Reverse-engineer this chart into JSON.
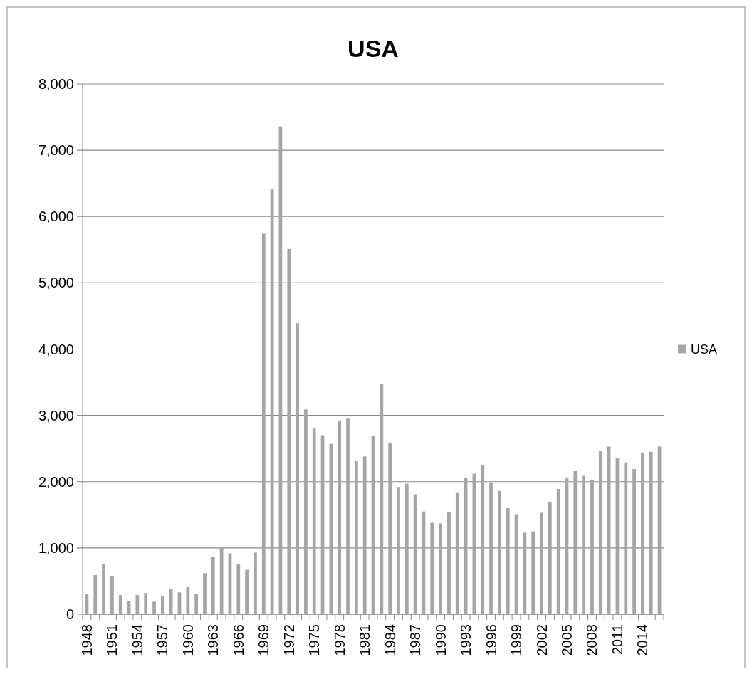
{
  "chart_data": {
    "type": "bar",
    "title": "USA",
    "categories": [
      "1948",
      null,
      null,
      "1951",
      null,
      null,
      "1954",
      null,
      null,
      "1957",
      null,
      null,
      "1960",
      null,
      null,
      "1963",
      null,
      null,
      "1966",
      null,
      null,
      "1969",
      null,
      null,
      "1972",
      null,
      null,
      "1975",
      null,
      null,
      "1978",
      null,
      null,
      "1981",
      null,
      null,
      "1984",
      null,
      null,
      "1987",
      null,
      null,
      "1990",
      null,
      null,
      "1993",
      null,
      null,
      "1996",
      null,
      null,
      "1999",
      null,
      null,
      "2002",
      null,
      null,
      "2005",
      null,
      null,
      "2008",
      null,
      null,
      "2011",
      null,
      null,
      "2014",
      null,
      null
    ],
    "series": [
      {
        "name": "USA",
        "color": "#a5a5a5",
        "values": [
          300,
          590,
          760,
          570,
          290,
          200,
          290,
          320,
          190,
          270,
          380,
          330,
          410,
          310,
          620,
          870,
          1000,
          920,
          750,
          670,
          930,
          5740,
          6420,
          7360,
          5510,
          4390,
          3090,
          2800,
          2700,
          2570,
          2920,
          2950,
          2310,
          2380,
          2690,
          3470,
          2580,
          1920,
          1970,
          1810,
          1550,
          1380,
          1370,
          1540,
          1840,
          2060,
          2120,
          2250,
          1990,
          1860,
          1600,
          1510,
          1230,
          1250,
          1530,
          1690,
          1890,
          2050,
          2160,
          2090,
          2020,
          2470,
          2530,
          2360,
          2290,
          2190,
          2440,
          2450,
          2530
        ]
      }
    ],
    "ylim": [
      0,
      8000
    ],
    "yticks": [
      {
        "value": 0,
        "label": "0"
      },
      {
        "value": 1000,
        "label": "1,000"
      },
      {
        "value": 2000,
        "label": "2,000"
      },
      {
        "value": 3000,
        "label": "3,000"
      },
      {
        "value": 4000,
        "label": "4,000"
      },
      {
        "value": 5000,
        "label": "5,000"
      },
      {
        "value": 6000,
        "label": "6,000"
      },
      {
        "value": 7000,
        "label": "7,000"
      },
      {
        "value": 8000,
        "label": "8,000"
      }
    ],
    "grid": "y",
    "legend": "right"
  }
}
